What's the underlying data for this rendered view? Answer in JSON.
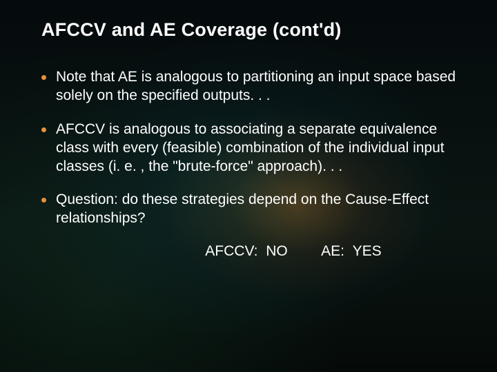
{
  "colors": {
    "bullet_dot": "#e8913a",
    "text": "#ffffff",
    "title": "#ffffff"
  },
  "typography": {
    "title_fontsize": 27,
    "title_weight": "bold",
    "body_fontsize": 21,
    "font_family": "Verdana"
  },
  "slide": {
    "title": "AFCCV and AE Coverage (cont'd)",
    "bullets": [
      "Note that AE is analogous to partitioning an input space based solely on the specified outputs. . .",
      "AFCCV is analogous to associating a separate equivalence class with every (feasible) combination of the individual input classes (i. e. , the \"brute-force\" approach). . .",
      "Question: do these strategies depend on the Cause-Effect relationships?"
    ],
    "answers": {
      "afccv_label": "AFCCV:",
      "afccv_value": "NO",
      "ae_label": "AE:",
      "ae_value": "YES"
    }
  }
}
